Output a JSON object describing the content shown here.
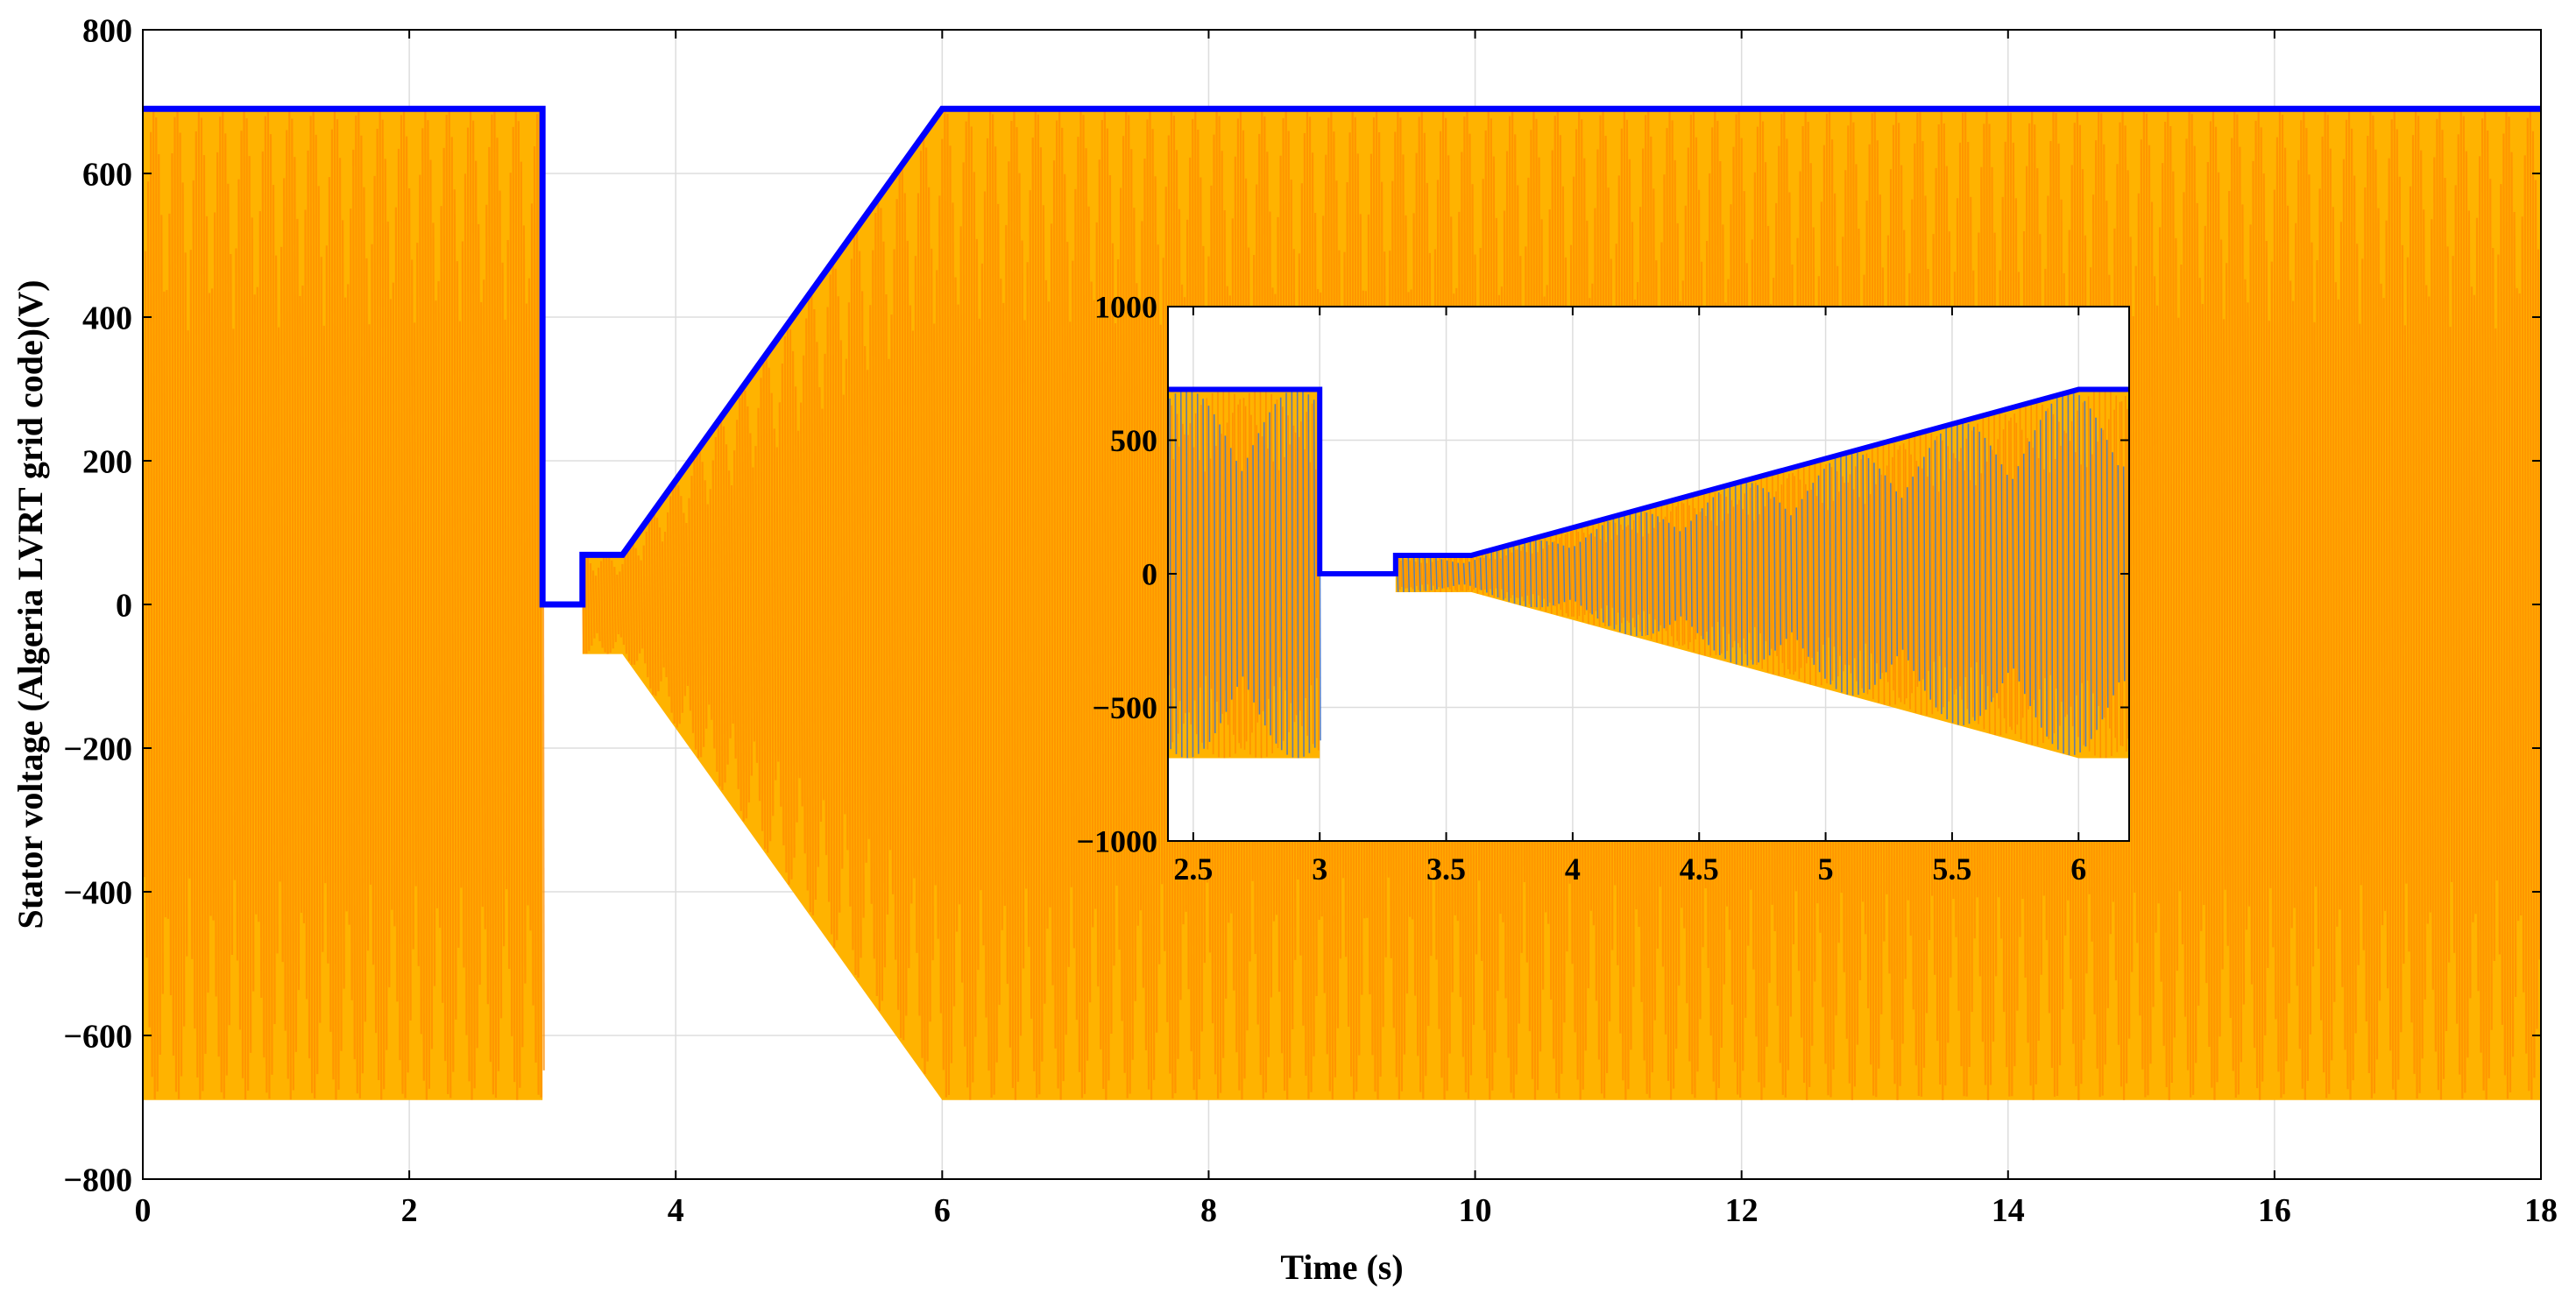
{
  "colors": {
    "envelope": "#0000ff",
    "phase_a": "#ffb300",
    "phase_b": "#ff8c00",
    "phase_c": "#4472c4",
    "grid": "#dddddd",
    "axis": "#000000"
  },
  "chart_data": [
    {
      "type": "line",
      "xlabel": "Time (s)",
      "ylabel": "Stator voltage (Algeria LVRT grid code)(V)",
      "xlim": [
        0,
        18
      ],
      "ylim": [
        -800,
        800
      ],
      "x_ticks": [
        0,
        2,
        4,
        6,
        8,
        10,
        12,
        14,
        16,
        18
      ],
      "x_tick_labels": [
        "0",
        "2",
        "4",
        "6",
        "8",
        "10",
        "12",
        "14",
        "16",
        "18"
      ],
      "y_ticks": [
        -800,
        -600,
        -400,
        -200,
        0,
        200,
        400,
        600,
        800
      ],
      "y_tick_labels": [
        "−800",
        "−600",
        "−400",
        "−200",
        "0",
        "200",
        "400",
        "600",
        "800"
      ],
      "grid": true,
      "series": [
        {
          "role": "envelope",
          "color": "#0000ff",
          "x": [
            0,
            3.0,
            3.0,
            3.3,
            3.3,
            3.6,
            6.0,
            18.0
          ],
          "y": [
            690,
            690,
            0,
            0,
            69,
            69,
            690,
            690
          ]
        },
        {
          "role": "three-phase-stator-voltage",
          "colors": [
            "#ffb300",
            "#ff8c00"
          ],
          "envelope_x": [
            0,
            3.0,
            3.0,
            3.3,
            3.3,
            3.6,
            6.0,
            18.0
          ],
          "envelope_amplitude": [
            690,
            690,
            0,
            0,
            69,
            69,
            690,
            690
          ]
        }
      ]
    },
    {
      "type": "line",
      "role": "inset-zoom",
      "xlim": [
        2.4,
        6.2
      ],
      "ylim": [
        -1000,
        1000
      ],
      "x_ticks": [
        2.5,
        3,
        3.5,
        4,
        4.5,
        5,
        5.5,
        6
      ],
      "x_tick_labels": [
        "2.5",
        "3",
        "3.5",
        "4",
        "4.5",
        "5",
        "5.5",
        "6"
      ],
      "y_ticks": [
        -1000,
        -500,
        0,
        500,
        1000
      ],
      "y_tick_labels": [
        "−1000",
        "−500",
        "0",
        "500",
        "1000"
      ],
      "grid": true,
      "series": [
        {
          "role": "envelope",
          "color": "#0000ff",
          "x": [
            2.4,
            3.0,
            3.0,
            3.3,
            3.3,
            3.6,
            6.0,
            6.2
          ],
          "y": [
            690,
            690,
            0,
            0,
            69,
            69,
            690,
            690
          ]
        },
        {
          "role": "three-phase-stator-voltage",
          "colors": [
            "#ffb300",
            "#ff8c00",
            "#4472c4"
          ],
          "envelope_x": [
            2.4,
            3.0,
            3.0,
            3.3,
            3.3,
            3.6,
            6.0,
            6.2
          ],
          "envelope_amplitude": [
            690,
            690,
            0,
            0,
            69,
            69,
            690,
            690
          ]
        }
      ]
    }
  ]
}
